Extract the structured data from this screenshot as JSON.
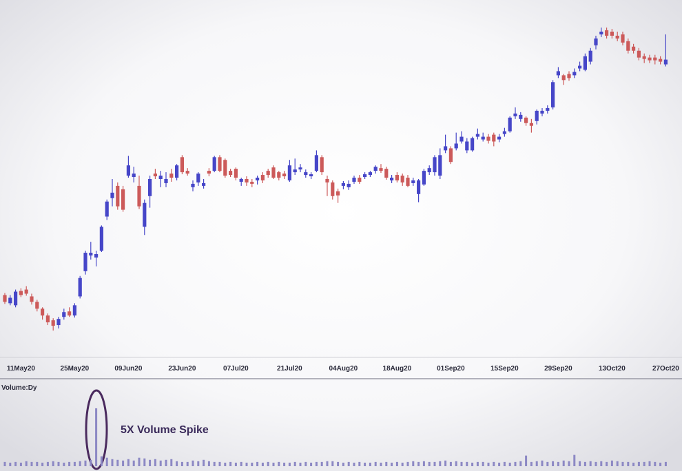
{
  "chart_data": [
    {
      "type": "candlestick",
      "categories": [
        null,
        null,
        null,
        "11May20",
        null,
        null,
        null,
        null,
        null,
        null,
        null,
        null,
        null,
        "25May20",
        null,
        null,
        null,
        null,
        null,
        null,
        null,
        null,
        null,
        "09Jun20",
        null,
        null,
        null,
        null,
        null,
        null,
        null,
        null,
        null,
        "23Jun20",
        null,
        null,
        null,
        null,
        null,
        null,
        null,
        null,
        null,
        "07Jul20",
        null,
        null,
        null,
        null,
        null,
        null,
        null,
        null,
        null,
        "21Jul20",
        null,
        null,
        null,
        null,
        null,
        null,
        null,
        null,
        null,
        "04Aug20",
        null,
        null,
        null,
        null,
        null,
        null,
        null,
        null,
        null,
        "18Aug20",
        null,
        null,
        null,
        null,
        null,
        null,
        null,
        null,
        null,
        "01Sep20",
        null,
        null,
        null,
        null,
        null,
        null,
        null,
        null,
        null,
        "15Sep20",
        null,
        null,
        null,
        null,
        null,
        null,
        null,
        null,
        null,
        "29Sep20",
        null,
        null,
        null,
        null,
        null,
        null,
        null,
        null,
        null,
        "13Oct20",
        null,
        null,
        null,
        null,
        null,
        null,
        null,
        null,
        null,
        "27Oct20"
      ],
      "open": [
        170,
        158,
        155,
        176,
        178,
        168,
        160,
        150,
        140,
        133,
        126,
        138,
        146,
        140,
        168,
        205,
        228,
        225,
        235,
        285,
        312,
        330,
        325,
        345,
        343,
        330,
        270,
        315,
        348,
        340,
        334,
        348,
        342,
        372,
        352,
        328,
        335,
        330,
        352,
        352,
        372,
        368,
        352,
        355,
        336,
        340,
        336,
        338,
        346,
        352,
        357,
        350,
        348,
        338,
        350,
        354,
        346,
        344,
        352,
        372,
        340,
        335,
        322,
        330,
        328,
        336,
        342,
        343,
        346,
        352,
        356,
        355,
        338,
        346,
        345,
        342,
        334,
        318,
        332,
        350,
        350,
        345,
        382,
        385,
        385,
        395,
        382,
        382,
        402,
        398,
        402,
        405,
        398,
        406,
        410,
        432,
        428,
        430,
        422,
        425,
        436,
        440,
        445,
        492,
        492,
        494,
        492,
        502,
        500,
        512,
        536,
        552,
        558,
        556,
        550,
        552,
        542,
        534,
        528,
        520,
        518,
        518,
        516,
        508
      ],
      "high": [
        173,
        170,
        178,
        180,
        183,
        172,
        163,
        152,
        143,
        136,
        138,
        150,
        152,
        158,
        198,
        235,
        248,
        235,
        272,
        310,
        340,
        335,
        330,
        374,
        358,
        345,
        310,
        345,
        355,
        352,
        350,
        355,
        362,
        375,
        356,
        338,
        350,
        340,
        356,
        374,
        375,
        370,
        355,
        357,
        342,
        344,
        340,
        345,
        350,
        355,
        360,
        352,
        352,
        368,
        370,
        362,
        354,
        350,
        382,
        375,
        345,
        338,
        326,
        337,
        338,
        345,
        346,
        350,
        352,
        360,
        362,
        358,
        346,
        350,
        348,
        346,
        342,
        340,
        355,
        360,
        375,
        385,
        405,
        388,
        408,
        410,
        400,
        402,
        414,
        408,
        406,
        408,
        406,
        415,
        432,
        445,
        438,
        432,
        428,
        442,
        444,
        448,
        485,
        504,
        494,
        498,
        502,
        512,
        524,
        532,
        550,
        562,
        562,
        560,
        556,
        556,
        546,
        538,
        532,
        524,
        522,
        522,
        520,
        552
      ],
      "low": [
        157,
        155,
        152,
        167,
        169,
        156,
        146,
        134,
        126,
        118,
        121,
        134,
        138,
        137,
        165,
        200,
        222,
        212,
        233,
        280,
        300,
        295,
        292,
        342,
        335,
        296,
        258,
        298,
        340,
        328,
        328,
        336,
        338,
        347,
        345,
        322,
        330,
        326,
        344,
        350,
        350,
        342,
        343,
        338,
        330,
        330,
        328,
        332,
        334,
        342,
        340,
        338,
        340,
        336,
        346,
        350,
        342,
        340,
        350,
        346,
        315,
        310,
        305,
        325,
        324,
        333,
        333,
        340,
        343,
        348,
        349,
        339,
        334,
        335,
        330,
        328,
        330,
        306,
        330,
        346,
        345,
        340,
        378,
        362,
        382,
        392,
        378,
        380,
        398,
        395,
        392,
        388,
        394,
        402,
        408,
        428,
        424,
        418,
        408,
        420,
        432,
        436,
        442,
        488,
        478,
        484,
        488,
        498,
        498,
        508,
        530,
        548,
        546,
        546,
        542,
        536,
        524,
        524,
        514,
        510,
        510,
        508,
        508,
        505
      ],
      "close": [
        160,
        166,
        175,
        170,
        172,
        160,
        150,
        140,
        130,
        125,
        135,
        145,
        140,
        155,
        195,
        232,
        232,
        230,
        270,
        307,
        320,
        300,
        295,
        360,
        348,
        300,
        305,
        340,
        344,
        345,
        340,
        342,
        360,
        350,
        348,
        333,
        348,
        334,
        348,
        372,
        352,
        345,
        346,
        342,
        340,
        335,
        333,
        342,
        338,
        346,
        342,
        342,
        344,
        360,
        354,
        357,
        350,
        347,
        375,
        350,
        335,
        315,
        316,
        334,
        333,
        342,
        336,
        347,
        350,
        358,
        352,
        342,
        342,
        338,
        335,
        330,
        338,
        338,
        352,
        356,
        372,
        375,
        388,
        365,
        392,
        402,
        395,
        400,
        406,
        402,
        396,
        395,
        402,
        410,
        430,
        436,
        434,
        422,
        418,
        440,
        440,
        444,
        482,
        498,
        485,
        488,
        497,
        506,
        520,
        528,
        546,
        556,
        550,
        550,
        546,
        540,
        528,
        528,
        518,
        516,
        514,
        514,
        512,
        515
      ],
      "up_color": "#4646c8",
      "down_color": "#cc5a5a"
    },
    {
      "type": "bar",
      "title": "Volume:Dy",
      "annotation": "5X Volume Spike",
      "color": "#8c88c4",
      "values": [
        6,
        5,
        6,
        5,
        7,
        6,
        6,
        5,
        6,
        7,
        6,
        5,
        6,
        6,
        7,
        8,
        9,
        82,
        14,
        12,
        10,
        9,
        8,
        10,
        8,
        12,
        11,
        9,
        10,
        8,
        9,
        10,
        7,
        6,
        6,
        8,
        7,
        9,
        7,
        6,
        6,
        5,
        6,
        5,
        6,
        5,
        5,
        6,
        5,
        6,
        5,
        6,
        5,
        5,
        6,
        5,
        6,
        5,
        6,
        6,
        7,
        7,
        6,
        5,
        6,
        5,
        6,
        5,
        5,
        6,
        5,
        6,
        5,
        6,
        5,
        6,
        7,
        6,
        7,
        6,
        6,
        7,
        8,
        6,
        7,
        6,
        6,
        5,
        6,
        6,
        5,
        6,
        5,
        6,
        5,
        6,
        7,
        15,
        6,
        7,
        8,
        6,
        7,
        6,
        8,
        7,
        16,
        7,
        6,
        7,
        6,
        7,
        6,
        8,
        7,
        6,
        6,
        5,
        6,
        6,
        7,
        6,
        5,
        6
      ]
    }
  ]
}
